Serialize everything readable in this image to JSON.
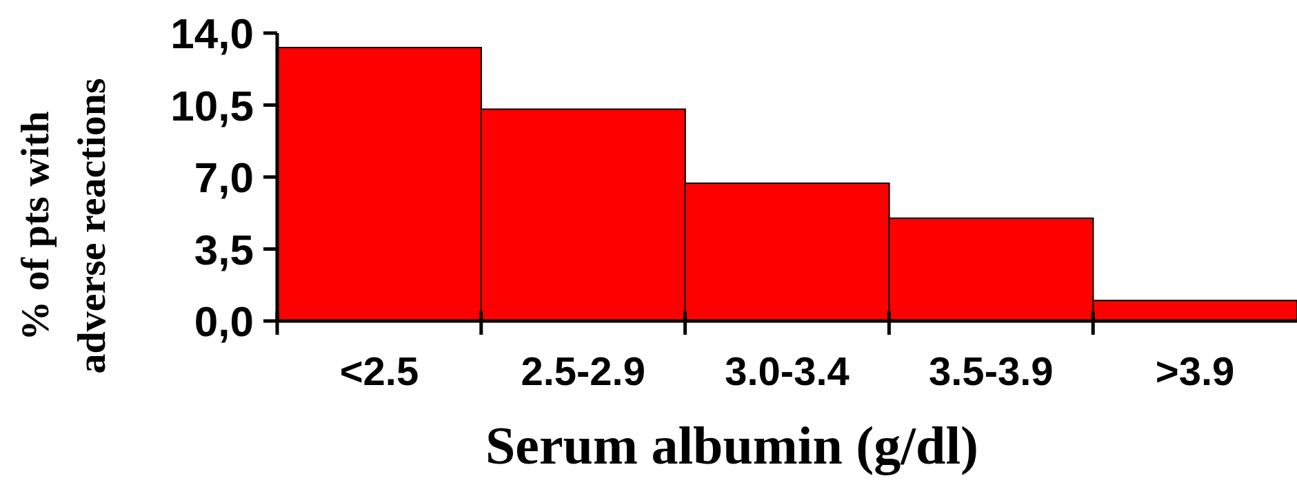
{
  "chart_data": {
    "type": "bar",
    "xlabel": "Serum albumin (g/dl)",
    "ylabel": "% of pts with adverse reactions",
    "categories": [
      "<2.5",
      "2.5-2.9",
      "3.0-3.4",
      "3.5-3.9",
      ">3.9"
    ],
    "values": [
      13.3,
      10.3,
      6.7,
      5.0,
      1.0
    ],
    "color": "#ff0000",
    "ylim": [
      0,
      14
    ],
    "yticks": [
      {
        "value": 0,
        "label": "0,0"
      },
      {
        "value": 3.5,
        "label": "3,5"
      },
      {
        "value": 7,
        "label": "7,0"
      },
      {
        "value": 10.5,
        "label": "10,5"
      },
      {
        "value": 14,
        "label": "14,0"
      }
    ],
    "grid": false,
    "legend": false
  }
}
